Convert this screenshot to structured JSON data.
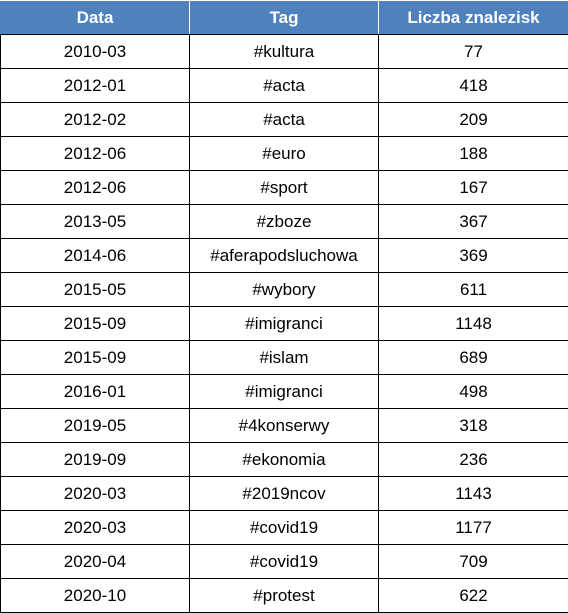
{
  "table": {
    "headers": [
      "Data",
      "Tag",
      "Liczba znalezisk"
    ],
    "rows": [
      [
        "2010-03",
        "#kultura",
        "77"
      ],
      [
        "2012-01",
        "#acta",
        "418"
      ],
      [
        "2012-02",
        "#acta",
        "209"
      ],
      [
        "2012-06",
        "#euro",
        "188"
      ],
      [
        "2012-06",
        "#sport",
        "167"
      ],
      [
        "2013-05",
        "#zboze",
        "367"
      ],
      [
        "2014-06",
        "#aferapodsluchowa",
        "369"
      ],
      [
        "2015-05",
        "#wybory",
        "611"
      ],
      [
        "2015-09",
        "#imigranci",
        "1148"
      ],
      [
        "2015-09",
        "#islam",
        "689"
      ],
      [
        "2016-01",
        "#imigranci",
        "498"
      ],
      [
        "2019-05",
        "#4konserwy",
        "318"
      ],
      [
        "2019-09",
        "#ekonomia",
        "236"
      ],
      [
        "2020-03",
        "#2019ncov",
        "1143"
      ],
      [
        "2020-03",
        "#covid19",
        "1177"
      ],
      [
        "2020-04",
        "#covid19",
        "709"
      ],
      [
        "2020-10",
        "#protest",
        "622"
      ]
    ]
  },
  "colors": {
    "header_bg": "#4f81bd",
    "header_text": "#ffffff",
    "border": "#000000"
  }
}
